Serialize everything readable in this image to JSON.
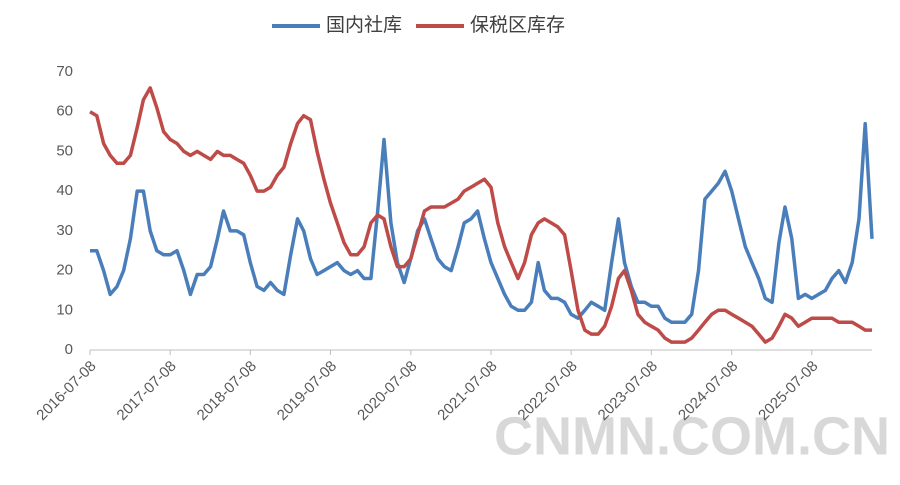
{
  "chart_data": {
    "type": "line",
    "x": [
      "2016-07-08",
      "2016-08-08",
      "2016-09-08",
      "2016-10-08",
      "2016-11-08",
      "2016-12-08",
      "2017-01-08",
      "2017-02-08",
      "2017-03-08",
      "2017-04-08",
      "2017-05-08",
      "2017-06-08",
      "2017-07-08",
      "2017-08-08",
      "2017-09-08",
      "2017-10-08",
      "2017-11-08",
      "2017-12-08",
      "2018-01-08",
      "2018-02-08",
      "2018-03-08",
      "2018-04-08",
      "2018-05-08",
      "2018-06-08",
      "2018-07-08",
      "2018-08-08",
      "2018-09-08",
      "2018-10-08",
      "2018-11-08",
      "2018-12-08",
      "2019-01-08",
      "2019-02-08",
      "2019-03-08",
      "2019-04-08",
      "2019-05-08",
      "2019-06-08",
      "2019-07-08",
      "2019-08-08",
      "2019-09-08",
      "2019-10-08",
      "2019-11-08",
      "2019-12-08",
      "2020-01-08",
      "2020-02-08",
      "2020-03-08",
      "2020-04-08",
      "2020-05-08",
      "2020-06-08",
      "2020-07-08",
      "2020-08-08",
      "2020-09-08",
      "2020-10-08",
      "2020-11-08",
      "2020-12-08",
      "2021-01-08",
      "2021-02-08",
      "2021-03-08",
      "2021-04-08",
      "2021-05-08",
      "2021-06-08",
      "2021-07-08",
      "2021-08-08",
      "2021-09-08",
      "2021-10-08",
      "2021-11-08",
      "2021-12-08",
      "2022-01-08",
      "2022-02-08",
      "2022-03-08",
      "2022-04-08",
      "2022-05-08",
      "2022-06-08",
      "2022-07-08",
      "2022-08-08",
      "2022-09-08",
      "2022-10-08",
      "2022-11-08",
      "2022-12-08",
      "2023-01-08",
      "2023-02-08",
      "2023-03-08",
      "2023-04-08",
      "2023-05-08",
      "2023-06-08",
      "2023-07-08",
      "2023-08-08",
      "2023-09-08",
      "2023-10-08",
      "2023-11-08",
      "2023-12-08",
      "2024-01-08",
      "2024-02-08",
      "2024-03-08",
      "2024-04-08",
      "2024-05-08",
      "2024-06-08",
      "2024-07-08",
      "2024-08-08",
      "2024-09-08",
      "2024-10-08",
      "2024-11-08",
      "2024-12-08",
      "2025-01-08",
      "2025-02-08",
      "2025-03-08",
      "2025-04-08",
      "2025-05-08",
      "2025-06-08",
      "2025-07-08",
      "2025-08-08",
      "2025-09-08",
      "2025-10-08",
      "2025-11-08",
      "2025-12-08",
      "2026-01-08",
      "2026-02-08",
      "2026-03-08",
      "2026-04-08"
    ],
    "series": [
      {
        "name": "国内社库",
        "color": "#4a7ebb",
        "values": [
          25,
          25,
          20,
          14,
          16,
          20,
          28,
          40,
          40,
          30,
          25,
          24,
          24,
          25,
          20,
          14,
          19,
          19,
          21,
          28,
          35,
          30,
          30,
          29,
          22,
          16,
          15,
          17,
          15,
          14,
          24,
          33,
          30,
          23,
          19,
          20,
          21,
          22,
          20,
          19,
          20,
          18,
          18,
          35,
          53,
          32,
          22,
          17,
          23,
          30,
          33,
          28,
          23,
          21,
          20,
          26,
          32,
          33,
          35,
          28,
          22,
          18,
          14,
          11,
          10,
          10,
          12,
          22,
          15,
          13,
          13,
          12,
          9,
          8,
          10,
          12,
          11,
          10,
          22,
          33,
          22,
          16,
          12,
          12,
          11,
          11,
          8,
          7,
          7,
          7,
          9,
          20,
          38,
          40,
          42,
          45,
          40,
          33,
          26,
          22,
          18,
          13,
          12,
          27,
          36,
          28,
          13,
          14,
          13,
          14,
          15,
          18,
          20,
          17,
          22,
          33,
          57,
          28
        ]
      },
      {
        "name": "保税区库存",
        "color": "#be4b48",
        "values": [
          60,
          59,
          52,
          49,
          47,
          47,
          49,
          56,
          63,
          66,
          61,
          55,
          53,
          52,
          50,
          49,
          50,
          49,
          48,
          50,
          49,
          49,
          48,
          47,
          44,
          40,
          40,
          41,
          44,
          46,
          52,
          57,
          59,
          58,
          50,
          43,
          37,
          32,
          27,
          24,
          24,
          26,
          32,
          34,
          33,
          26,
          21,
          21,
          23,
          29,
          35,
          36,
          36,
          36,
          37,
          38,
          40,
          41,
          42,
          43,
          41,
          32,
          26,
          22,
          18,
          22,
          29,
          32,
          33,
          32,
          31,
          29,
          20,
          10,
          5,
          4,
          4,
          6,
          11,
          18,
          20,
          15,
          9,
          7,
          6,
          5,
          3,
          2,
          2,
          2,
          3,
          5,
          7,
          9,
          10,
          10,
          9,
          8,
          7,
          6,
          4,
          2,
          3,
          6,
          9,
          8,
          6,
          7,
          8,
          8,
          8,
          8,
          7,
          7,
          7,
          6,
          5,
          5
        ]
      }
    ],
    "xlim": [
      "2016-07-08",
      "2026-04-08"
    ],
    "xticks": [
      "2016-07-08",
      "2017-07-08",
      "2018-07-08",
      "2019-07-08",
      "2020-07-08",
      "2021-07-08",
      "2022-07-08",
      "2023-07-08",
      "2024-07-08",
      "2025-07-08"
    ],
    "ylim": [
      0,
      70
    ],
    "yticks": [
      0,
      10,
      20,
      30,
      40,
      50,
      60,
      70
    ],
    "grid": false,
    "legend": "top",
    "watermark": "CNMN.COM.CN"
  }
}
